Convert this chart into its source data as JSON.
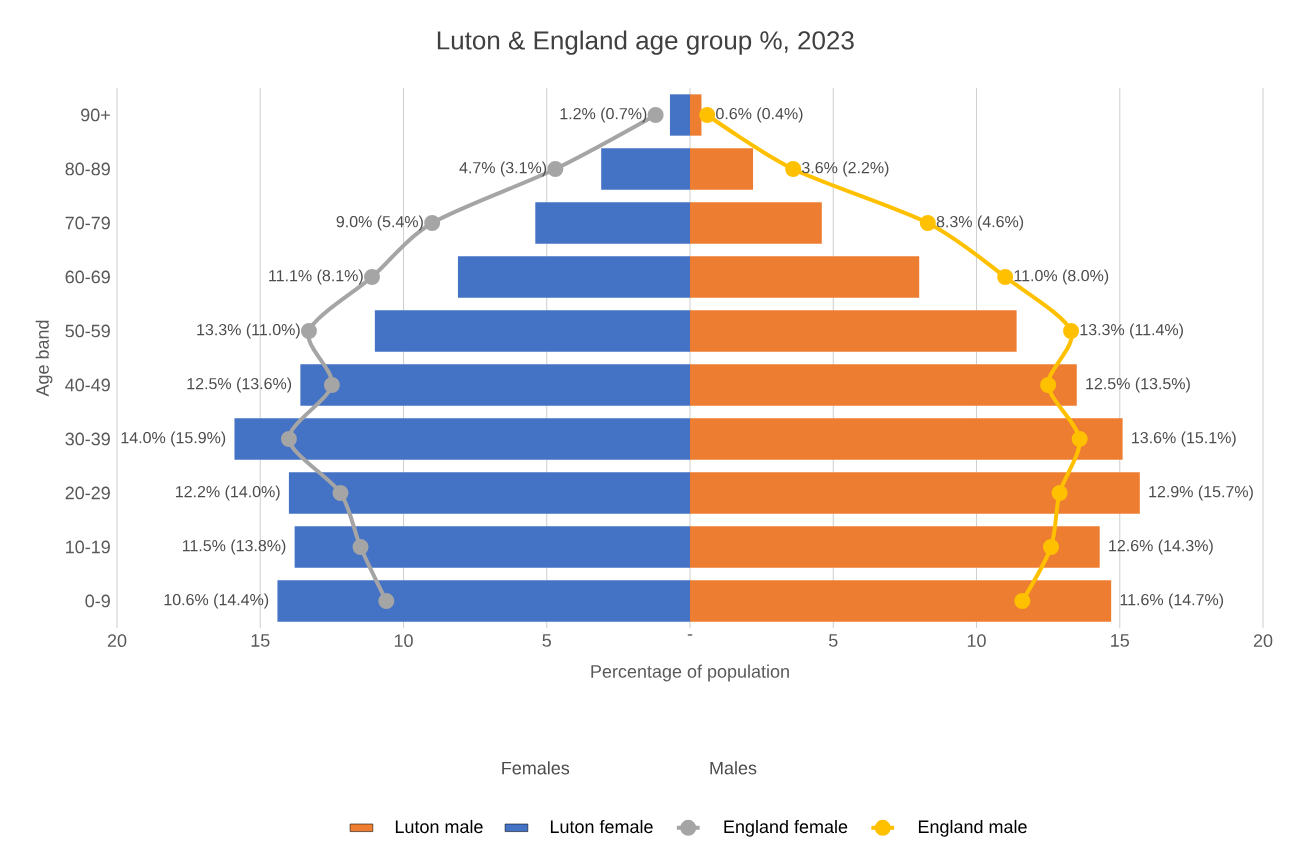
{
  "chart_data": {
    "type": "bar",
    "orientation": "horizontal",
    "stacked": true,
    "title": "Luton & England age group %, 2023",
    "xlabel": "Percentage of population",
    "ylabel": "Age band",
    "categories": [
      "90+",
      "80-89",
      "70-79",
      "60-69",
      "50-59",
      "40-49",
      "30-39",
      "20-29",
      "10-19",
      "0-9"
    ],
    "series": [
      {
        "name": "Luton male",
        "color": "#ed7d31",
        "values": [
          0.4,
          2.2,
          4.6,
          8.0,
          11.4,
          13.5,
          15.1,
          15.7,
          14.3,
          14.7
        ]
      },
      {
        "name": "Luton female",
        "color": "#4472c4",
        "values": [
          -0.7,
          -3.1,
          -5.4,
          -8.1,
          -11.0,
          -13.6,
          -15.9,
          -14.0,
          -13.8,
          -14.4
        ]
      },
      {
        "name": "England female",
        "type": "line",
        "color": "#a5a5a5",
        "values": [
          -1.2,
          -4.7,
          -9.0,
          -11.1,
          -13.3,
          -12.5,
          -14.0,
          -12.2,
          -11.5,
          -10.6
        ]
      },
      {
        "name": "England male",
        "type": "line",
        "color": "#ffc000",
        "values": [
          0.6,
          3.6,
          8.3,
          11.0,
          13.3,
          12.5,
          13.6,
          12.9,
          12.6,
          11.6
        ]
      }
    ],
    "xlim": [
      -20,
      20
    ],
    "xticks": [
      {
        "value": -20,
        "label": "20"
      },
      {
        "value": -15,
        "label": "15"
      },
      {
        "value": -10,
        "label": "10"
      },
      {
        "value": -5,
        "label": "5"
      },
      {
        "value": 0,
        "label": "-"
      },
      5,
      10,
      15,
      20
    ],
    "grid": "x",
    "legend": "bottom",
    "marker": "circle",
    "annotations": [
      "Females",
      "Males",
      {
        "text": "0.6% (0.4%)",
        "x": 0.6,
        "y": "90+"
      },
      {
        "text": "3.6% (2.2%)",
        "x": 3.6,
        "y": "80-89"
      },
      {
        "text": "8.3% (4.6%)",
        "x": 8.3,
        "y": "70-79"
      },
      {
        "text": "11.0% (8.0%)",
        "x": 11.0,
        "y": "60-69"
      },
      {
        "text": "13.3% (11.4%)",
        "x": 13.3,
        "y": "50-59"
      },
      {
        "text": "12.5% (13.5%)",
        "x": 13.5,
        "y": "40-49"
      },
      {
        "text": "13.6% (15.1%)",
        "x": 15.1,
        "y": "30-39"
      },
      {
        "text": "12.9% (15.7%)",
        "x": 15.7,
        "y": "20-29"
      },
      {
        "text": "12.6% (14.3%)",
        "x": 14.3,
        "y": "10-19"
      },
      {
        "text": "11.6% (14.7%)",
        "x": 14.7,
        "y": "0-9"
      },
      {
        "text": "1.2% (0.7%)",
        "x": -1.2,
        "y": "90+"
      },
      {
        "text": "4.7% (3.1%)",
        "x": -4.7,
        "y": "80-89"
      },
      {
        "text": "9.0% (5.4%)",
        "x": -9.0,
        "y": "70-79"
      },
      {
        "text": "11.1% (8.1%)",
        "x": -11.1,
        "y": "60-69"
      },
      {
        "text": "13.3% (11.0%)",
        "x": -13.3,
        "y": "50-59"
      },
      {
        "text": "12.5% (13.6%)",
        "x": -13.6,
        "y": "40-49"
      },
      {
        "text": "14.0% (15.9%)",
        "x": -15.9,
        "y": "30-39"
      },
      {
        "text": "12.2% (14.0%)",
        "x": -14.0,
        "y": "20-29"
      },
      {
        "text": "11.5% (13.8%)",
        "x": -13.8,
        "y": "10-19"
      },
      {
        "text": "10.6% (14.4%)",
        "x": -14.4,
        "y": "0-9"
      }
    ]
  }
}
